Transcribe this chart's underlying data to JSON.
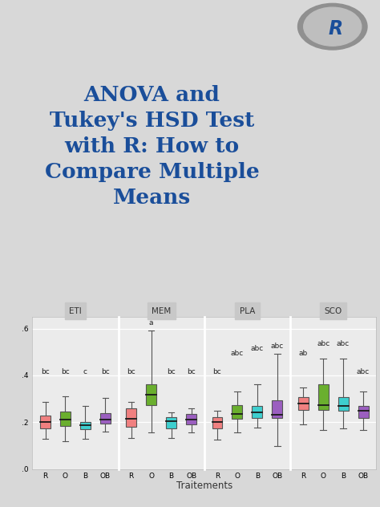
{
  "title_lines": [
    "ANOVA and",
    "Tukey's HSD Test",
    "with R: How to",
    "Compare Multiple",
    "Means"
  ],
  "title_color": "#1A4E9A",
  "background_color": "#D8D8D8",
  "plot_bg_color": "#EBEBEB",
  "panel_label_bg": "#C8C8C8",
  "xlabel": "Traitements",
  "facets": [
    "ETI",
    "MEM",
    "PLA",
    "SCO"
  ],
  "categories": [
    "R",
    "O",
    "B",
    "OB"
  ],
  "box_colors": [
    "#F08080",
    "#6AAF2E",
    "#3ECFCF",
    "#9B5FC0"
  ],
  "ylim": [
    0.0,
    0.65
  ],
  "yticks": [
    0.0,
    0.2,
    0.4,
    0.6
  ],
  "ytick_labels": [
    ".0 -",
    ".2 -",
    ".4 -",
    ".6 -"
  ],
  "boxes": {
    "ETI": {
      "R": {
        "q1": 0.175,
        "median": 0.2,
        "q3": 0.23,
        "whislo": 0.13,
        "whishi": 0.285
      },
      "O": {
        "q1": 0.185,
        "median": 0.21,
        "q3": 0.245,
        "whislo": 0.12,
        "whishi": 0.31
      },
      "B": {
        "q1": 0.17,
        "median": 0.188,
        "q3": 0.2,
        "whislo": 0.13,
        "whishi": 0.268
      },
      "OB": {
        "q1": 0.195,
        "median": 0.21,
        "q3": 0.238,
        "whislo": 0.16,
        "whishi": 0.305
      }
    },
    "MEM": {
      "R": {
        "q1": 0.182,
        "median": 0.215,
        "q3": 0.26,
        "whislo": 0.132,
        "whishi": 0.285
      },
      "O": {
        "q1": 0.272,
        "median": 0.318,
        "q3": 0.362,
        "whislo": 0.158,
        "whishi": 0.592
      },
      "B": {
        "q1": 0.175,
        "median": 0.205,
        "q3": 0.222,
        "whislo": 0.132,
        "whishi": 0.242
      },
      "OB": {
        "q1": 0.19,
        "median": 0.21,
        "q3": 0.235,
        "whislo": 0.158,
        "whishi": 0.258
      }
    },
    "PLA": {
      "R": {
        "q1": 0.175,
        "median": 0.2,
        "q3": 0.22,
        "whislo": 0.125,
        "whishi": 0.248
      },
      "O": {
        "q1": 0.215,
        "median": 0.235,
        "q3": 0.272,
        "whislo": 0.158,
        "whishi": 0.332
      },
      "B": {
        "q1": 0.218,
        "median": 0.242,
        "q3": 0.268,
        "whislo": 0.178,
        "whishi": 0.362
      },
      "OB": {
        "q1": 0.218,
        "median": 0.232,
        "q3": 0.295,
        "whislo": 0.098,
        "whishi": 0.492
      }
    },
    "SCO": {
      "R": {
        "q1": 0.252,
        "median": 0.28,
        "q3": 0.308,
        "whislo": 0.192,
        "whishi": 0.348
      },
      "O": {
        "q1": 0.252,
        "median": 0.272,
        "q3": 0.362,
        "whislo": 0.168,
        "whishi": 0.472
      },
      "B": {
        "q1": 0.248,
        "median": 0.268,
        "q3": 0.308,
        "whislo": 0.172,
        "whishi": 0.472
      },
      "OB": {
        "q1": 0.218,
        "median": 0.248,
        "q3": 0.268,
        "whislo": 0.168,
        "whishi": 0.332
      }
    }
  },
  "annotations": {
    "ETI": [
      "bc",
      "bc",
      "c",
      "bc"
    ],
    "MEM": [
      "bc",
      "a",
      "bc",
      "bc"
    ],
    "PLA": [
      "bc",
      "abc",
      "abc",
      "abc"
    ],
    "SCO": [
      "ab",
      "abc",
      "abc",
      "abc"
    ]
  },
  "annot_y": {
    "ETI": [
      0.4,
      0.4,
      0.4,
      0.4
    ],
    "MEM": [
      0.4,
      0.61,
      0.4,
      0.4
    ],
    "PLA": [
      0.4,
      0.48,
      0.5,
      0.51
    ],
    "SCO": [
      0.48,
      0.52,
      0.52,
      0.4
    ]
  }
}
